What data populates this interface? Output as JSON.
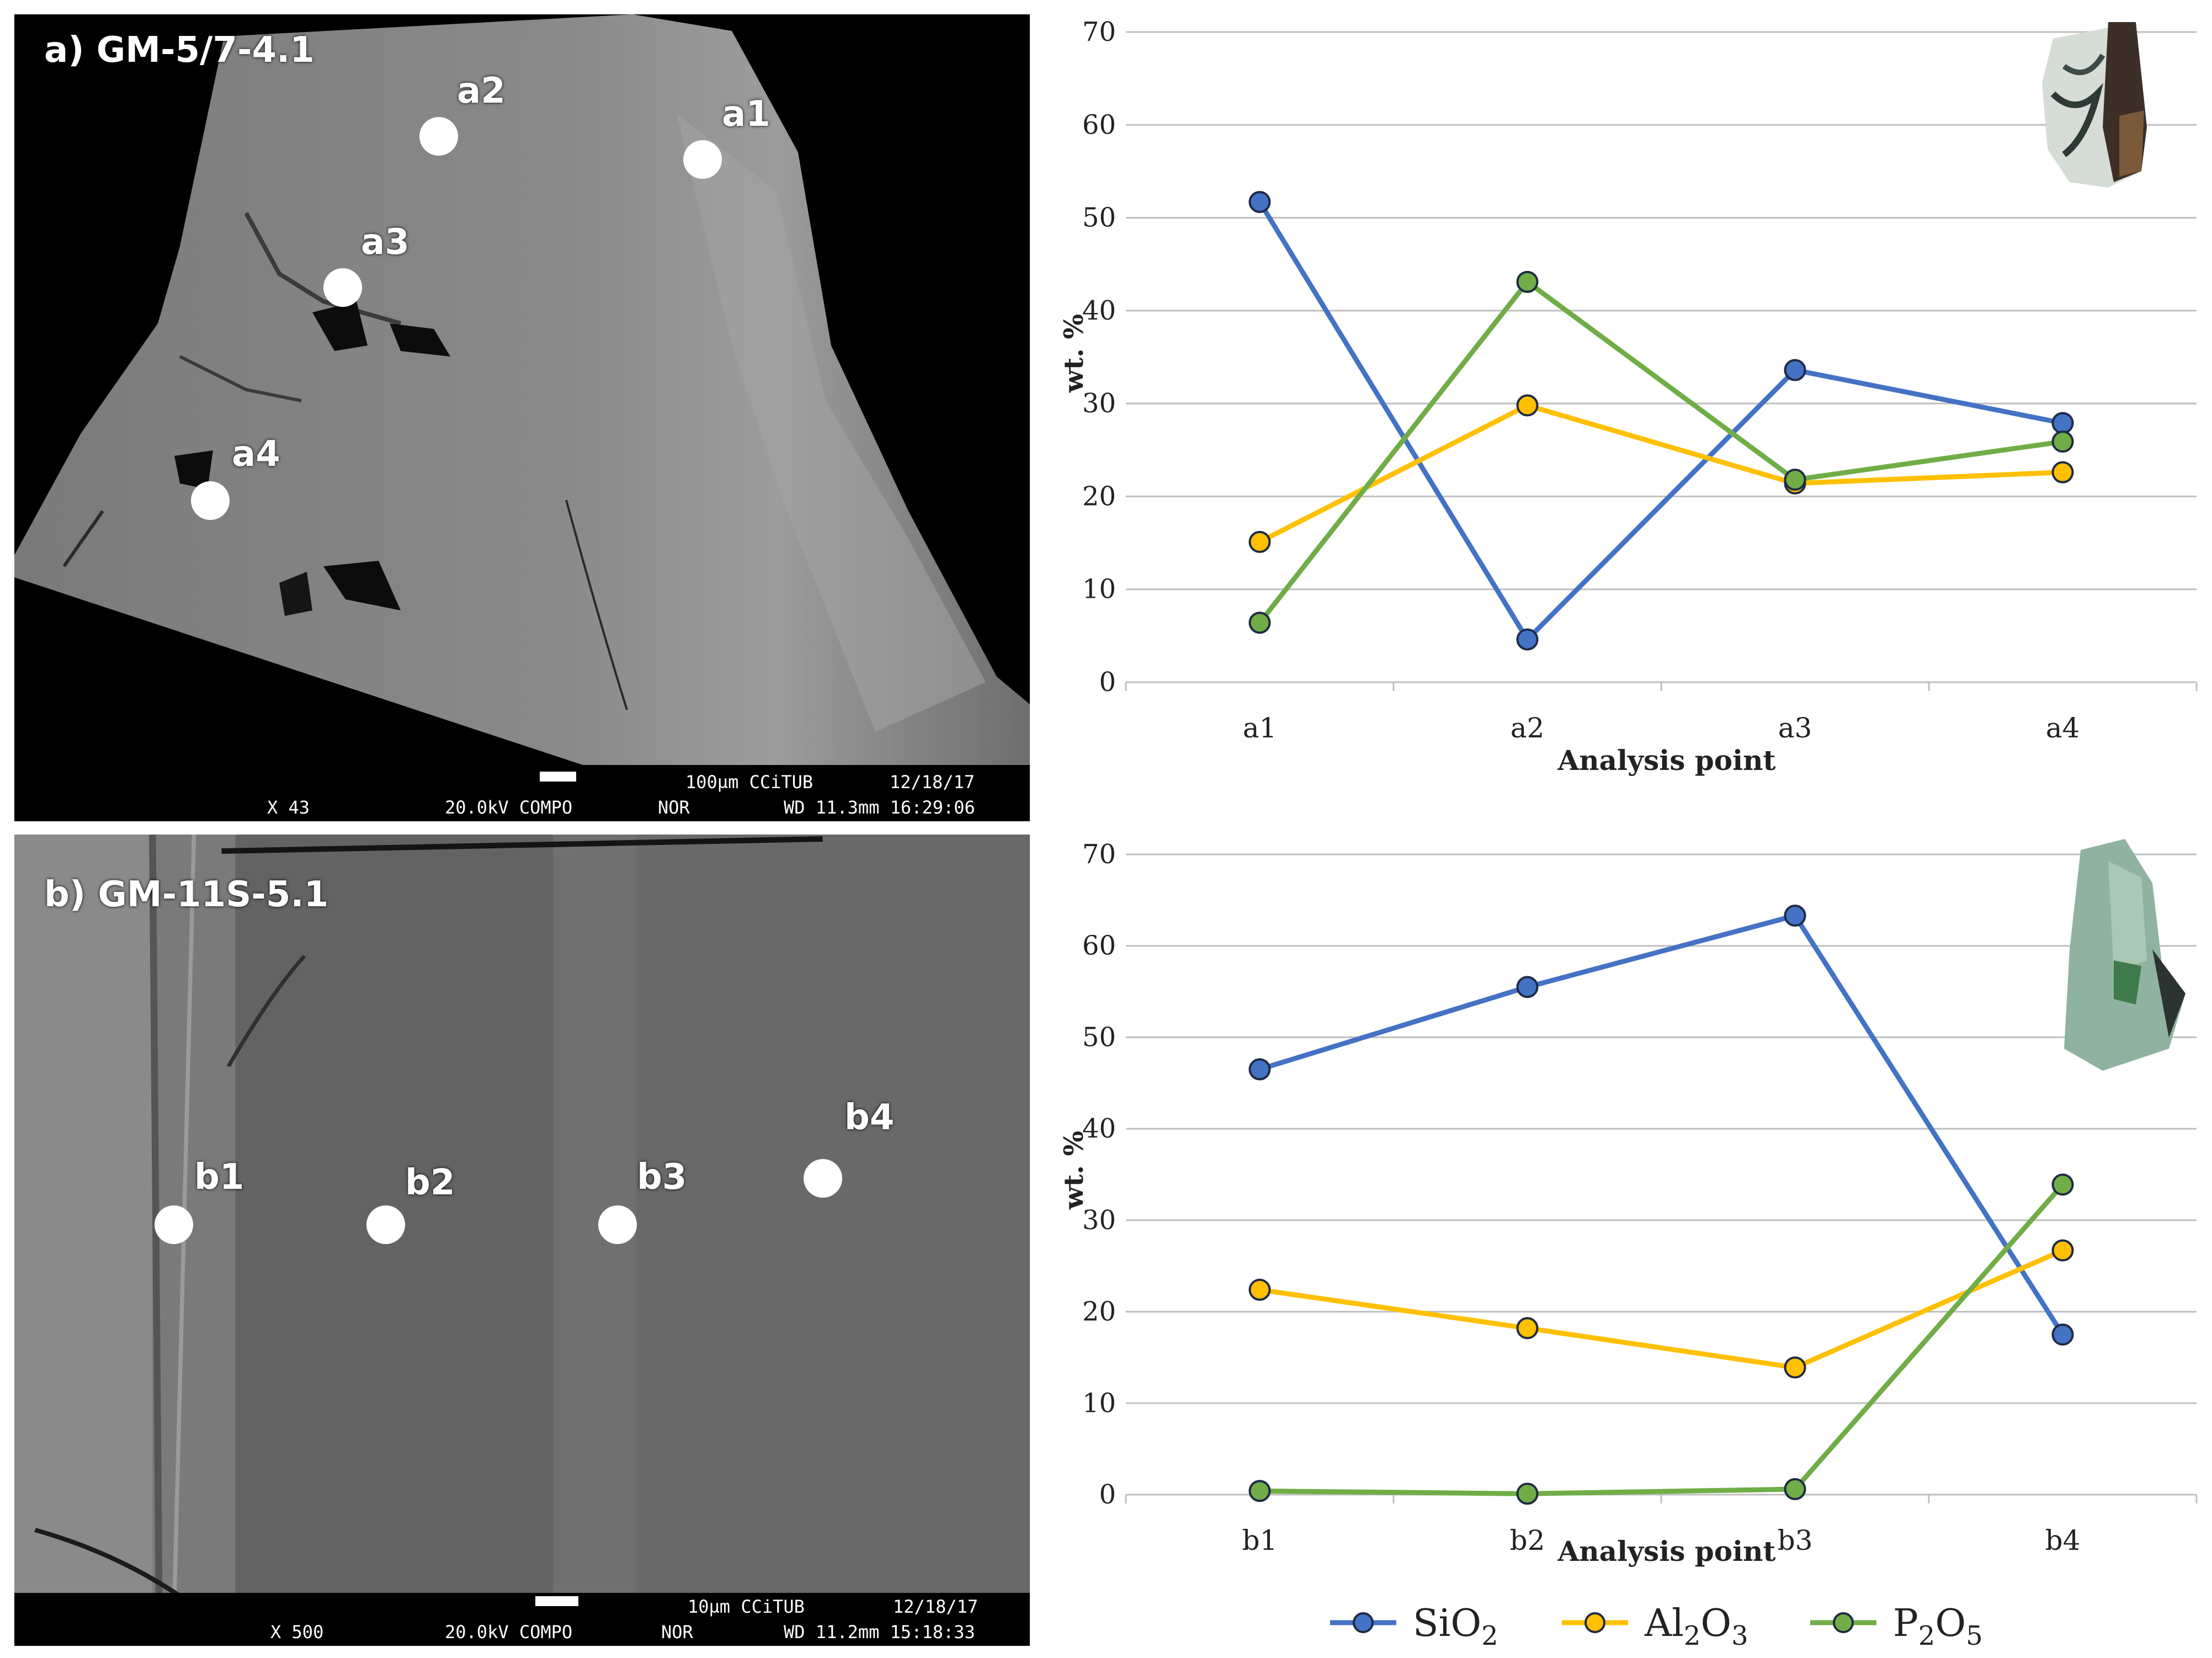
{
  "panel_a": {
    "label": "a) GM-5/7-4.1",
    "points": [
      "a1",
      "a2",
      "a3",
      "a4"
    ],
    "sem_info": {
      "magnification": "X 43",
      "voltage": "20.0kV COMPO",
      "mode": "NOR",
      "scale": "100µm CCiTUB",
      "wd": "WD 11.3mm 16:29:06",
      "date": "12/18/17"
    }
  },
  "panel_b": {
    "label": "b) GM-11S-5.1",
    "points": [
      "b1",
      "b2",
      "b3",
      "b4"
    ],
    "sem_info": {
      "magnification": "X 500",
      "voltage": "20.0kV COMPO",
      "mode": "NOR",
      "scale": "10µm CCiTUB",
      "wd": "WD 11.2mm 15:18:33",
      "date": "12/18/17"
    }
  },
  "chart_data": [
    {
      "type": "line",
      "categories": [
        "a1",
        "a2",
        "a3",
        "a4"
      ],
      "series": [
        {
          "name": "SiO2",
          "values": [
            51.7,
            4.6,
            33.6,
            27.9
          ]
        },
        {
          "name": "Al2O3",
          "values": [
            15.1,
            29.8,
            21.4,
            22.6
          ]
        },
        {
          "name": "P2O5",
          "values": [
            6.4,
            43.1,
            21.8,
            25.9
          ]
        }
      ],
      "xlabel": "Analysis point",
      "ylabel": "wt. %",
      "ylim": [
        0,
        70
      ],
      "yticks": [
        "0",
        "10",
        "20",
        "30",
        "40",
        "50",
        "60",
        "70"
      ],
      "grid": true
    },
    {
      "type": "line",
      "categories": [
        "b1",
        "b2",
        "b3",
        "b4"
      ],
      "series": [
        {
          "name": "SiO2",
          "values": [
            46.5,
            55.5,
            63.3,
            17.5
          ]
        },
        {
          "name": "Al2O3",
          "values": [
            22.4,
            18.2,
            13.9,
            26.7
          ]
        },
        {
          "name": "P2O5",
          "values": [
            0.4,
            0.1,
            0.6,
            33.9
          ]
        }
      ],
      "xlabel": "Analysis point",
      "ylabel": "wt. %",
      "ylim": [
        0,
        70
      ],
      "yticks": [
        "0",
        "10",
        "20",
        "30",
        "40",
        "50",
        "60",
        "70"
      ],
      "grid": true
    }
  ],
  "legend": [
    {
      "base": "SiO",
      "sub": "2",
      "base2": "",
      "sub2": "",
      "color": "#4472C4"
    },
    {
      "base": "Al",
      "sub": "2",
      "base2": "O",
      "sub2": "3",
      "color": "#FFC000"
    },
    {
      "base": "P",
      "sub": "2",
      "base2": "O",
      "sub2": "5",
      "color": "#70AD47"
    }
  ],
  "colors": {
    "sio2": "#4472C4",
    "al2o3": "#FFC000",
    "p2o5": "#70AD47",
    "grid": "#BFBFBF",
    "marker_edge": "#1F2A44"
  }
}
